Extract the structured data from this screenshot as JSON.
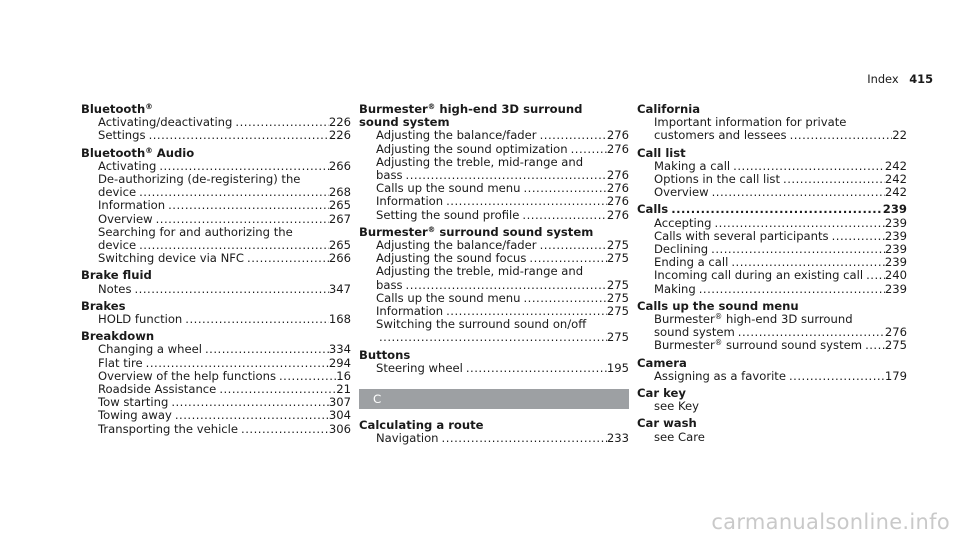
{
  "page": {
    "section_title": "Index",
    "page_number": "415"
  },
  "columns": {
    "left": [
      {
        "head": "Bluetooth",
        "sup": "®",
        "subs": [
          {
            "label": "Activating/deactivating",
            "page": "226"
          },
          {
            "label": "Settings",
            "page": "226"
          }
        ]
      },
      {
        "head": "Bluetooth",
        "sup": "®",
        "head_suffix": " Audio",
        "subs": [
          {
            "label": "Activating",
            "page": "266"
          },
          {
            "text": "De-authorizing (de-registering) the"
          },
          {
            "label": "device",
            "page": "268"
          },
          {
            "label": "Information",
            "page": "265"
          },
          {
            "label": "Overview",
            "page": "267"
          },
          {
            "text": "Searching for and authorizing the"
          },
          {
            "label": "device",
            "page": "265"
          },
          {
            "label": "Switching device via NFC",
            "page": "266"
          }
        ]
      },
      {
        "head": "Brake fluid",
        "subs": [
          {
            "label": "Notes",
            "page": "347"
          }
        ]
      },
      {
        "head": "Brakes",
        "subs": [
          {
            "label": "HOLD function",
            "page": "168"
          }
        ]
      },
      {
        "head": "Breakdown",
        "subs": [
          {
            "label": "Changing a wheel",
            "page": "334"
          },
          {
            "label": "Flat tire",
            "page": "294"
          },
          {
            "label": "Overview of the help functions",
            "page": "16"
          },
          {
            "label": "Roadside Assistance",
            "page": "21"
          },
          {
            "label": "Tow starting",
            "page": "307"
          },
          {
            "label": "Towing away",
            "page": "304"
          },
          {
            "label": "Transporting the vehicle",
            "page": "306"
          }
        ]
      }
    ],
    "middle": [
      {
        "head": "Burmester",
        "sup": "®",
        "head_suffix": " high-end 3D surround",
        "head_line2": "sound system",
        "subs": [
          {
            "label": "Adjusting the balance/fader",
            "page": "276"
          },
          {
            "label": "Adjusting the sound optimization",
            "page": "276"
          },
          {
            "text": "Adjusting the treble, mid-range and"
          },
          {
            "label": "bass",
            "page": "276"
          },
          {
            "label": "Calls up the sound menu",
            "page": "276"
          },
          {
            "label": "Information",
            "page": "276"
          },
          {
            "label": "Setting the sound profile",
            "page": "276"
          }
        ]
      },
      {
        "head": "Burmester",
        "sup": "®",
        "head_suffix": " surround sound system",
        "subs": [
          {
            "label": "Adjusting the balance/fader",
            "page": "275"
          },
          {
            "label": "Adjusting the sound focus",
            "page": "275"
          },
          {
            "text": "Adjusting the treble, mid-range and"
          },
          {
            "label": "bass",
            "page": "275"
          },
          {
            "label": "Calls up the sound menu",
            "page": "275"
          },
          {
            "label": "Information",
            "page": "275"
          },
          {
            "text": "Switching the surround sound on/off"
          },
          {
            "label": "",
            "page": "275"
          }
        ]
      },
      {
        "head": "Buttons",
        "subs": [
          {
            "label": "Steering wheel",
            "page": "195"
          }
        ]
      },
      {
        "section": "C"
      },
      {
        "head": "Calculating a route",
        "subs": [
          {
            "label": "Navigation",
            "page": "233"
          }
        ]
      }
    ],
    "right": [
      {
        "head": "California",
        "subs": [
          {
            "text": "Important information for private"
          },
          {
            "label": "customers and lessees",
            "page": "22"
          }
        ]
      },
      {
        "head": "Call list",
        "subs": [
          {
            "label": "Making a call",
            "page": "242"
          },
          {
            "label": "Options in the call list",
            "page": "242"
          },
          {
            "label": "Overview",
            "page": "242"
          }
        ]
      },
      {
        "head": "Calls",
        "head_page": "239",
        "subs": [
          {
            "label": "Accepting",
            "page": "239"
          },
          {
            "label": "Calls with several participants",
            "page": "239"
          },
          {
            "label": "Declining",
            "page": "239"
          },
          {
            "label": "Ending a call",
            "page": "239"
          },
          {
            "label": "Incoming call during an existing call",
            "page": "240"
          },
          {
            "label": "Making",
            "page": "239"
          }
        ]
      },
      {
        "head": "Calls up the sound menu",
        "subs": [
          {
            "text_pre": "Burmester",
            "sup": "®",
            "text_post": " high-end 3D surround"
          },
          {
            "label": "sound system",
            "page": "276"
          },
          {
            "label_pre": "Burmester",
            "sup": "®",
            "label_post": " surround sound system",
            "page": "275"
          }
        ]
      },
      {
        "head": "Camera",
        "subs": [
          {
            "label": "Assigning as a favorite",
            "page": "179"
          }
        ]
      },
      {
        "head": "Car key",
        "subs": [
          {
            "text": "see Key"
          }
        ]
      },
      {
        "head": "Car wash",
        "subs": [
          {
            "text": "see Care"
          }
        ]
      }
    ]
  },
  "watermark": "carmanualsonline.info"
}
